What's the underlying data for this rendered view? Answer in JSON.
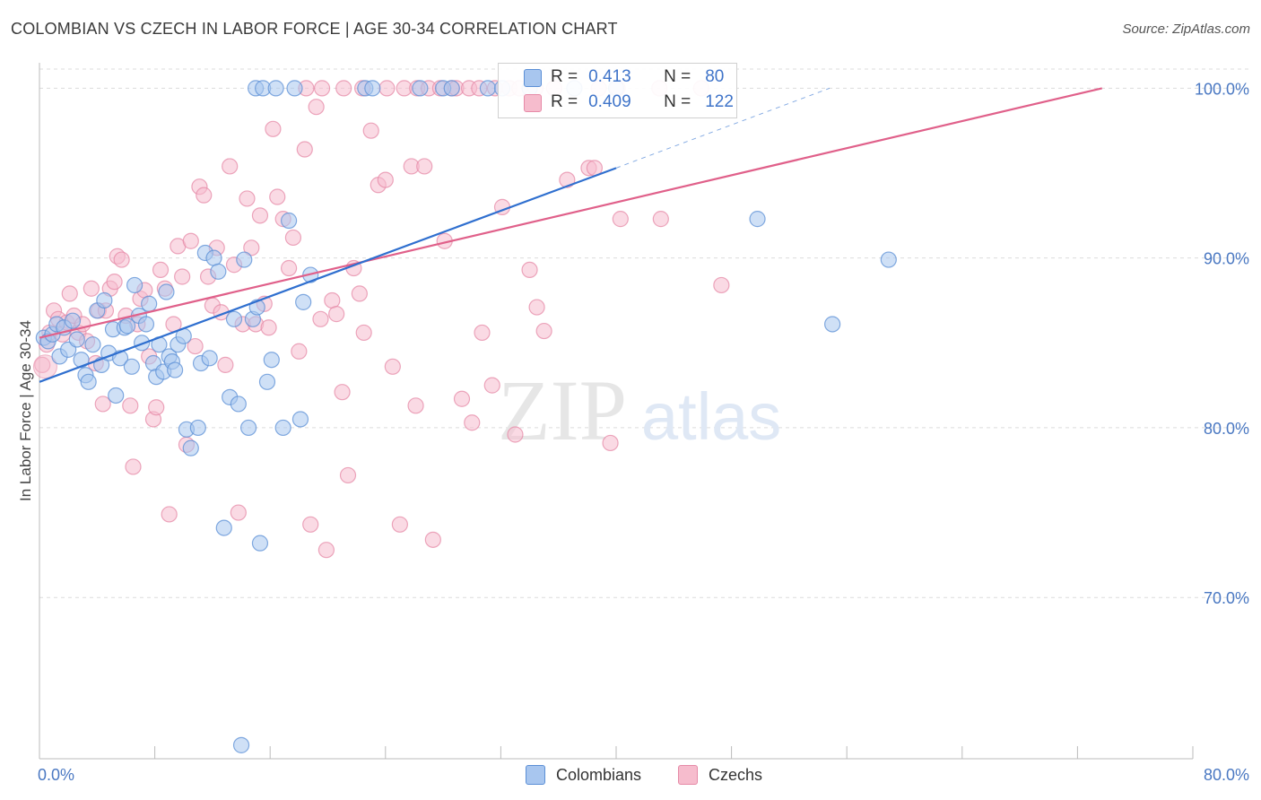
{
  "header": {
    "title": "COLOMBIAN VS CZECH IN LABOR FORCE | AGE 30-34 CORRELATION CHART",
    "source": "Source: ZipAtlas.com"
  },
  "watermark": {
    "zip": "ZIP",
    "atlas": "atlas"
  },
  "legend": {
    "colombians": {
      "r_label": "R =",
      "r_value": "0.413",
      "n_label": "N =",
      "n_value": "80"
    },
    "czechs": {
      "r_label": "R =",
      "r_value": "0.409",
      "n_label": "N =",
      "n_value": "122"
    }
  },
  "bottom_legend": {
    "colombians": "Colombians",
    "czechs": "Czechs"
  },
  "colors": {
    "colombians_fill": "#a8c6ef",
    "colombians_stroke": "#5b8fd6",
    "colombians_line": "#2f6fcf",
    "czechs_fill": "#f6bccd",
    "czechs_stroke": "#e68aa7",
    "czechs_line": "#e0608a",
    "grid": "#dcdcdc",
    "tick_text": "#4a78c2"
  },
  "chart_data": {
    "type": "scatter",
    "title": "COLOMBIAN VS CZECH IN LABOR FORCE | AGE 30-34 CORRELATION CHART",
    "xlabel": "",
    "ylabel": "In Labor Force | Age 30-34",
    "xlim": [
      0,
      80
    ],
    "ylim": [
      60.5,
      101.5
    ],
    "x_tick_labels": [
      "0.0%",
      "80.0%"
    ],
    "y_ticks": [
      70,
      80,
      90,
      100
    ],
    "y_tick_labels": [
      "70.0%",
      "80.0%",
      "90.0%",
      "100.0%"
    ],
    "grid": true,
    "legend_position": "top-center",
    "series": [
      {
        "name": "Colombians",
        "R": 0.413,
        "N": 80,
        "trend": {
          "x": [
            0,
            40
          ],
          "y": [
            82.7,
            95.3
          ],
          "dashed_to": {
            "x": 54.8,
            "y": 100
          }
        },
        "points": [
          [
            0.3,
            85.3
          ],
          [
            0.6,
            85.1
          ],
          [
            0.9,
            85.5
          ],
          [
            1.2,
            86.1
          ],
          [
            1.4,
            84.2
          ],
          [
            1.7,
            85.9
          ],
          [
            2.0,
            84.6
          ],
          [
            2.3,
            86.3
          ],
          [
            2.6,
            85.2
          ],
          [
            2.9,
            84.0
          ],
          [
            3.2,
            83.1
          ],
          [
            3.4,
            82.7
          ],
          [
            3.7,
            84.9
          ],
          [
            4.0,
            86.9
          ],
          [
            4.3,
            83.7
          ],
          [
            4.5,
            87.5
          ],
          [
            4.8,
            84.4
          ],
          [
            5.1,
            85.8
          ],
          [
            5.3,
            81.9
          ],
          [
            5.6,
            84.1
          ],
          [
            5.9,
            85.9
          ],
          [
            6.1,
            86.0
          ],
          [
            6.4,
            83.6
          ],
          [
            6.6,
            88.4
          ],
          [
            6.9,
            86.6
          ],
          [
            7.1,
            85.0
          ],
          [
            7.4,
            86.1
          ],
          [
            7.6,
            87.3
          ],
          [
            7.9,
            83.8
          ],
          [
            8.1,
            83.0
          ],
          [
            8.3,
            84.9
          ],
          [
            8.6,
            83.3
          ],
          [
            8.8,
            88.0
          ],
          [
            9.0,
            84.2
          ],
          [
            9.2,
            83.9
          ],
          [
            9.4,
            83.4
          ],
          [
            9.6,
            84.9
          ],
          [
            10.0,
            85.4
          ],
          [
            10.2,
            79.9
          ],
          [
            10.5,
            78.8
          ],
          [
            11.0,
            80.0
          ],
          [
            11.2,
            83.8
          ],
          [
            11.5,
            90.3
          ],
          [
            11.8,
            84.1
          ],
          [
            12.1,
            90.0
          ],
          [
            12.4,
            89.2
          ],
          [
            12.8,
            74.1
          ],
          [
            13.2,
            81.8
          ],
          [
            13.5,
            86.4
          ],
          [
            13.8,
            81.4
          ],
          [
            14.2,
            89.9
          ],
          [
            14.5,
            80.0
          ],
          [
            14.8,
            86.4
          ],
          [
            15.1,
            87.1
          ],
          [
            15.3,
            73.2
          ],
          [
            15.8,
            82.7
          ],
          [
            16.1,
            84.0
          ],
          [
            16.9,
            80.0
          ],
          [
            17.3,
            92.2
          ],
          [
            18.1,
            80.5
          ],
          [
            18.3,
            87.4
          ],
          [
            18.8,
            89.0
          ],
          [
            14.0,
            61.3
          ],
          [
            15.0,
            100
          ],
          [
            15.5,
            100
          ],
          [
            16.4,
            100
          ],
          [
            17.7,
            100
          ],
          [
            22.6,
            100
          ],
          [
            23.1,
            100
          ],
          [
            26.4,
            100
          ],
          [
            28.0,
            100
          ],
          [
            28.6,
            100
          ],
          [
            31.1,
            100
          ],
          [
            32.1,
            100
          ],
          [
            34.0,
            100
          ],
          [
            37.1,
            100
          ],
          [
            40.0,
            100
          ],
          [
            49.8,
            92.3
          ],
          [
            55.0,
            86.1
          ],
          [
            58.9,
            89.9
          ]
        ]
      },
      {
        "name": "Czechs",
        "R": 0.409,
        "N": 122,
        "trend": {
          "x": [
            0,
            73.7
          ],
          "y": [
            85.3,
            100
          ]
        },
        "points": [
          [
            0.2,
            83.7
          ],
          [
            0.5,
            84.9
          ],
          [
            0.7,
            85.6
          ],
          [
            1.0,
            86.9
          ],
          [
            1.3,
            86.4
          ],
          [
            1.6,
            85.5
          ],
          [
            1.9,
            86.2
          ],
          [
            2.1,
            87.9
          ],
          [
            2.4,
            86.6
          ],
          [
            2.7,
            85.6
          ],
          [
            3.0,
            86.1
          ],
          [
            3.3,
            85.1
          ],
          [
            3.6,
            88.2
          ],
          [
            3.9,
            83.8
          ],
          [
            4.1,
            86.9
          ],
          [
            4.4,
            81.4
          ],
          [
            4.6,
            86.9
          ],
          [
            4.9,
            88.2
          ],
          [
            5.2,
            88.6
          ],
          [
            5.4,
            90.1
          ],
          [
            5.7,
            89.9
          ],
          [
            6.0,
            86.6
          ],
          [
            6.3,
            81.3
          ],
          [
            6.5,
            77.7
          ],
          [
            6.8,
            86.1
          ],
          [
            7.0,
            87.6
          ],
          [
            7.3,
            88.1
          ],
          [
            7.6,
            84.2
          ],
          [
            7.9,
            80.5
          ],
          [
            8.1,
            81.2
          ],
          [
            8.4,
            89.3
          ],
          [
            8.7,
            88.2
          ],
          [
            9.0,
            74.9
          ],
          [
            9.3,
            86.1
          ],
          [
            9.6,
            90.7
          ],
          [
            9.9,
            88.9
          ],
          [
            10.2,
            79.0
          ],
          [
            10.5,
            91.0
          ],
          [
            10.8,
            84.8
          ],
          [
            11.1,
            94.2
          ],
          [
            11.4,
            93.7
          ],
          [
            11.7,
            88.9
          ],
          [
            12.0,
            87.2
          ],
          [
            12.3,
            90.6
          ],
          [
            12.6,
            86.8
          ],
          [
            12.9,
            83.7
          ],
          [
            13.2,
            95.4
          ],
          [
            13.5,
            89.6
          ],
          [
            13.8,
            75.0
          ],
          [
            14.1,
            86.1
          ],
          [
            14.4,
            93.5
          ],
          [
            14.7,
            90.6
          ],
          [
            15.0,
            86.1
          ],
          [
            15.3,
            92.5
          ],
          [
            15.6,
            87.3
          ],
          [
            15.9,
            85.9
          ],
          [
            16.2,
            97.6
          ],
          [
            16.5,
            93.6
          ],
          [
            16.9,
            92.3
          ],
          [
            17.3,
            89.4
          ],
          [
            17.6,
            91.2
          ],
          [
            18.0,
            84.5
          ],
          [
            18.4,
            96.4
          ],
          [
            18.8,
            74.3
          ],
          [
            19.2,
            98.9
          ],
          [
            19.5,
            86.4
          ],
          [
            19.9,
            72.8
          ],
          [
            20.3,
            87.5
          ],
          [
            20.6,
            86.7
          ],
          [
            21.0,
            82.1
          ],
          [
            21.4,
            77.2
          ],
          [
            21.8,
            89.4
          ],
          [
            22.2,
            87.9
          ],
          [
            22.5,
            85.6
          ],
          [
            23.0,
            97.5
          ],
          [
            23.5,
            94.3
          ],
          [
            24.0,
            94.6
          ],
          [
            24.5,
            83.6
          ],
          [
            25.0,
            74.3
          ],
          [
            25.8,
            95.4
          ],
          [
            26.1,
            81.3
          ],
          [
            26.7,
            95.4
          ],
          [
            27.3,
            73.4
          ],
          [
            28.1,
            91.0
          ],
          [
            28.6,
            100
          ],
          [
            29.3,
            81.7
          ],
          [
            30.0,
            80.3
          ],
          [
            30.7,
            85.6
          ],
          [
            31.4,
            82.5
          ],
          [
            32.1,
            93.0
          ],
          [
            33.0,
            79.6
          ],
          [
            34.0,
            89.3
          ],
          [
            34.5,
            87.1
          ],
          [
            35.0,
            85.7
          ],
          [
            36.6,
            94.6
          ],
          [
            38.1,
            95.3
          ],
          [
            38.5,
            95.3
          ],
          [
            39.6,
            79.1
          ],
          [
            40.3,
            92.3
          ],
          [
            43.1,
            92.3
          ],
          [
            47.3,
            88.4
          ],
          [
            18.5,
            100
          ],
          [
            19.6,
            100
          ],
          [
            21.1,
            100
          ],
          [
            22.4,
            100
          ],
          [
            24.1,
            100
          ],
          [
            25.3,
            100
          ],
          [
            26.2,
            100
          ],
          [
            27.0,
            100
          ],
          [
            27.8,
            100
          ],
          [
            28.9,
            100
          ],
          [
            29.8,
            100
          ],
          [
            30.5,
            100
          ],
          [
            31.6,
            100
          ],
          [
            32.6,
            100
          ],
          [
            33.3,
            100
          ],
          [
            34.4,
            100
          ],
          [
            35.7,
            100
          ],
          [
            38.8,
            100
          ],
          [
            40.1,
            100
          ],
          [
            43.0,
            100
          ],
          [
            45.9,
            100
          ]
        ]
      }
    ]
  }
}
